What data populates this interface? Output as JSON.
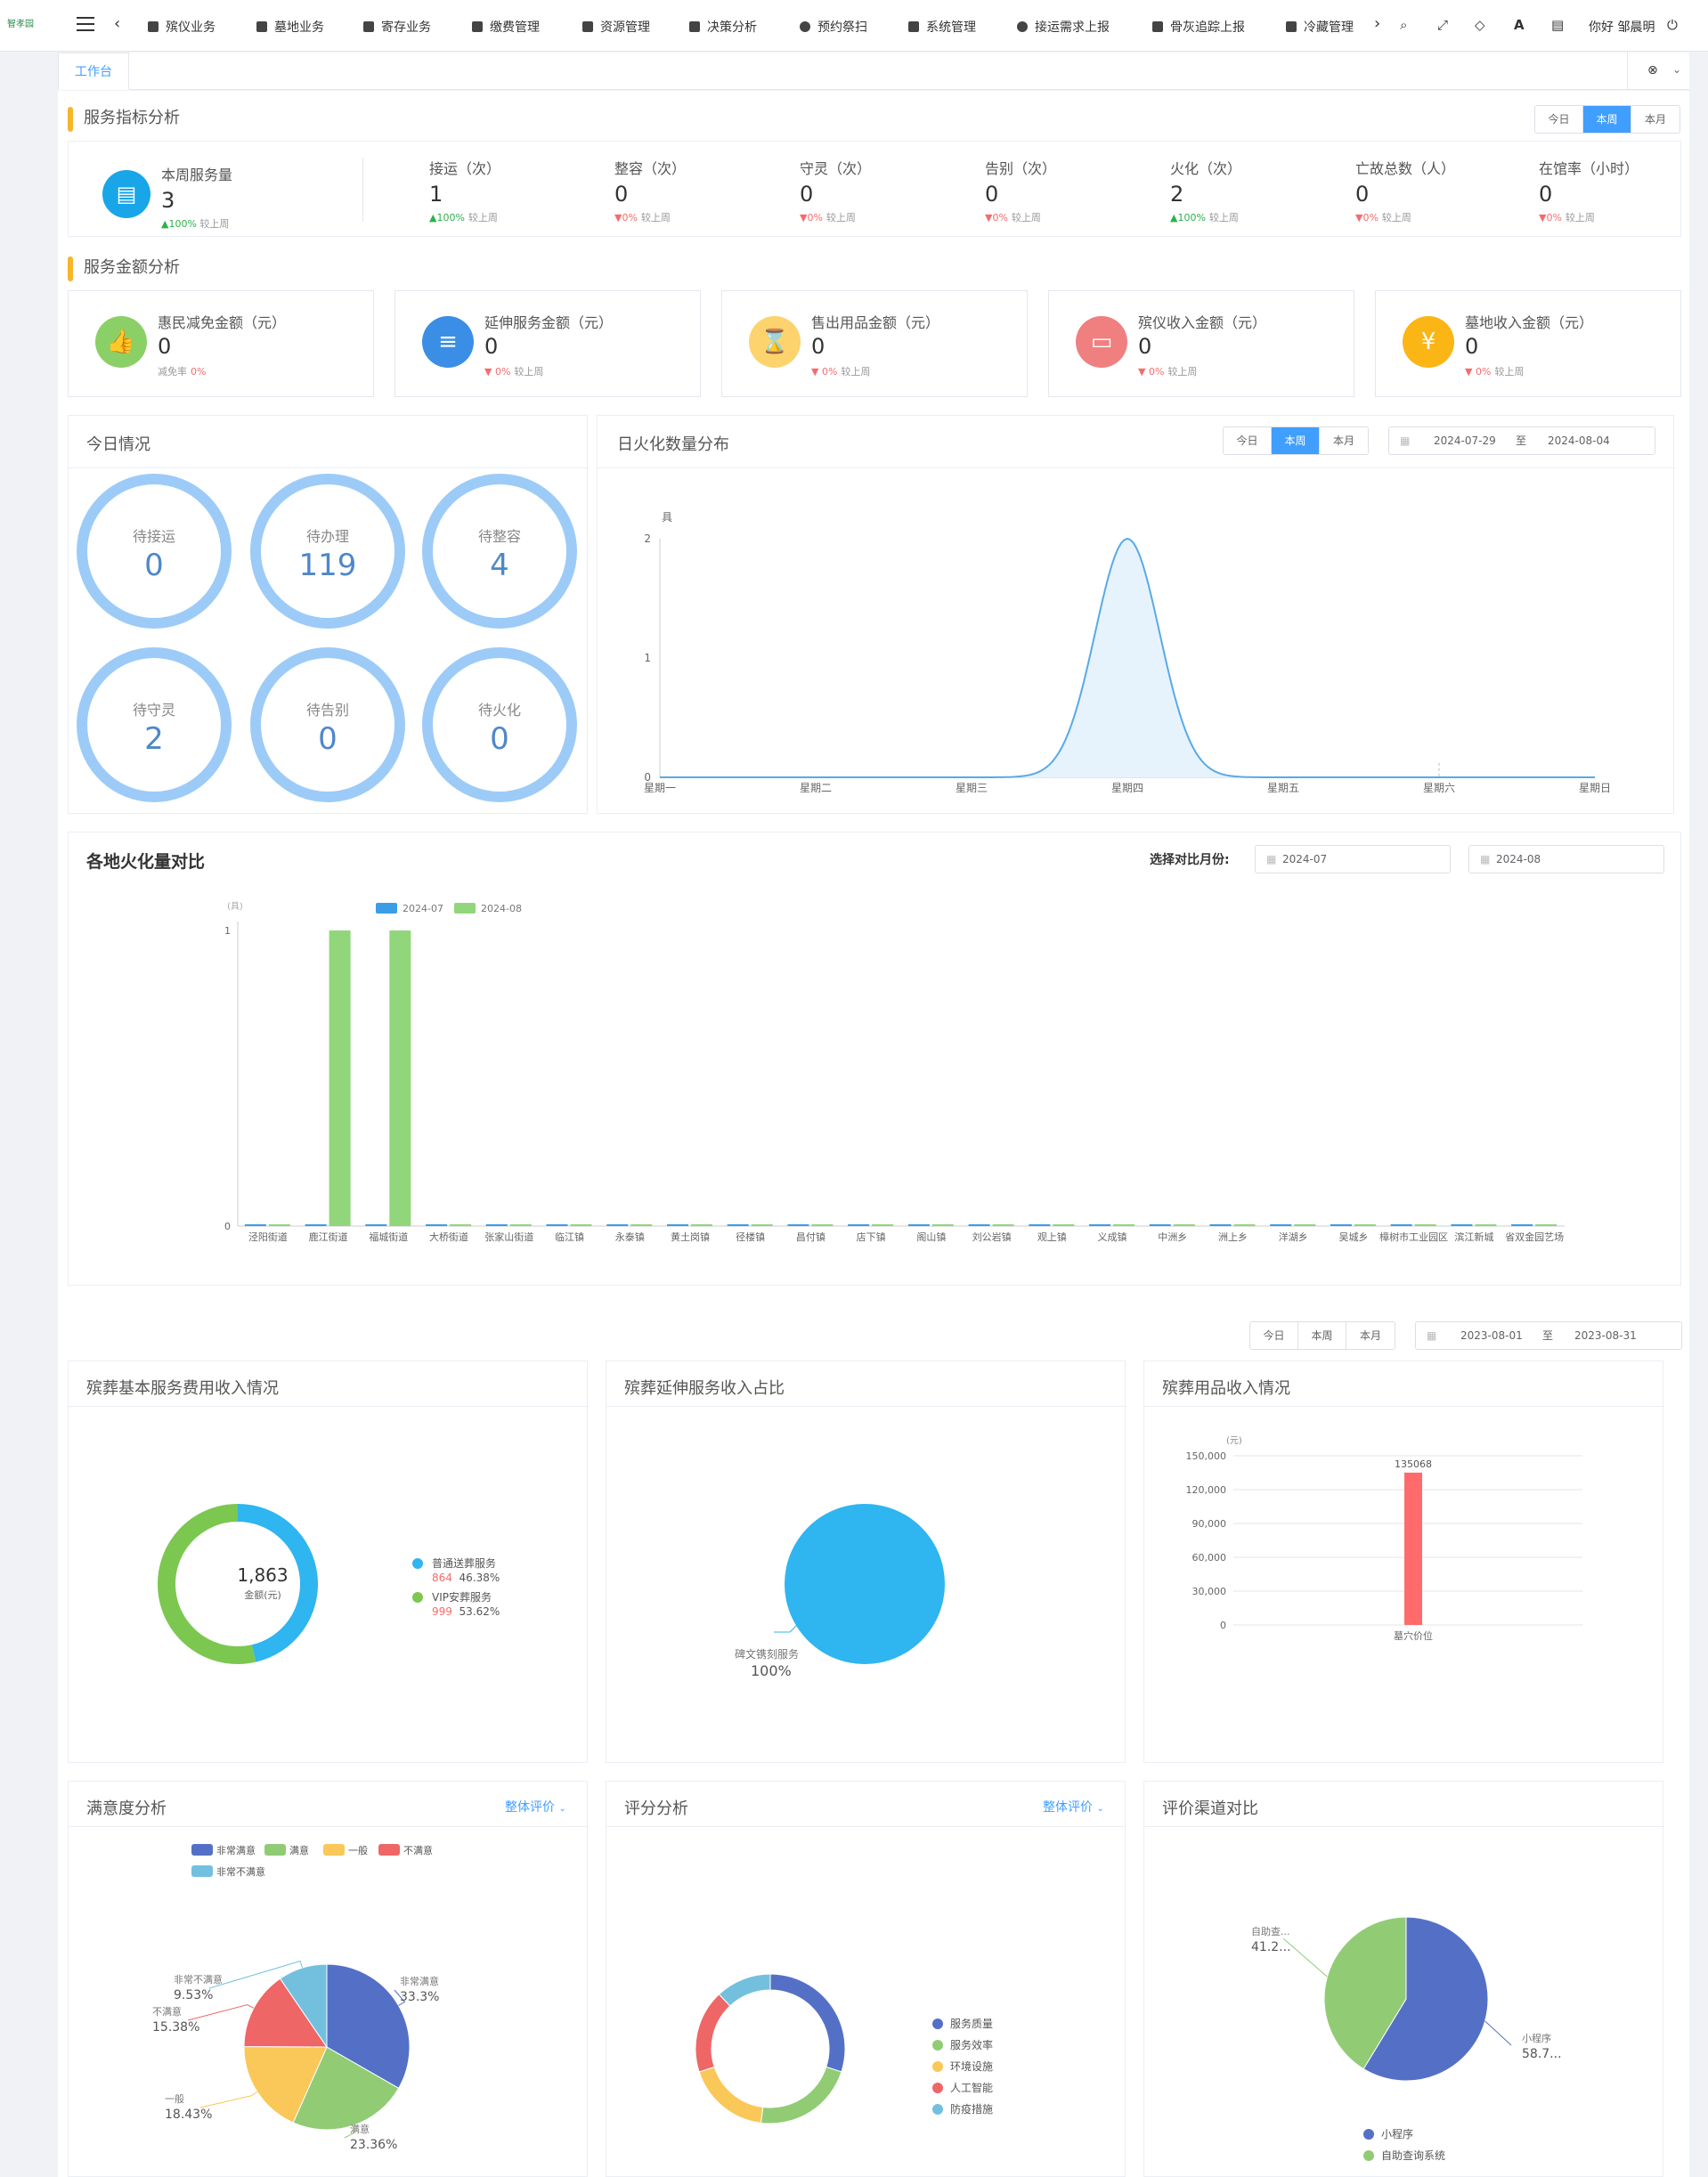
{
  "app": {
    "logo_text": "智孝园",
    "user": "你好 邹晨明"
  },
  "nav": [
    "殡仪业务",
    "墓地业务",
    "寄存业务",
    "缴费管理",
    "资源管理",
    "决策分析",
    "预约祭扫",
    "系统管理",
    "接运需求上报",
    "骨灰追踪上报",
    "冷藏管理"
  ],
  "tab": {
    "label": "工作台"
  },
  "period": [
    "今日",
    "本周",
    "本月"
  ],
  "service_index": {
    "title": "服务指标分析",
    "main": {
      "label": "本周服务量",
      "value": "3",
      "change": "100%",
      "suffix": "较上周"
    },
    "items": [
      {
        "label": "接运（次）",
        "value": "1",
        "change": "100%",
        "dir": "up"
      },
      {
        "label": "整容（次）",
        "value": "0",
        "change": "0%",
        "dir": "dn"
      },
      {
        "label": "守灵（次）",
        "value": "0",
        "change": "0%",
        "dir": "dn"
      },
      {
        "label": "告别（次）",
        "value": "0",
        "change": "0%",
        "dir": "dn"
      },
      {
        "label": "火化（次）",
        "value": "2",
        "change": "100%",
        "dir": "up"
      },
      {
        "label": "亡故总数（人）",
        "value": "0",
        "change": "0%",
        "dir": "dn"
      },
      {
        "label": "在馆率（小时）",
        "value": "0",
        "change": "0%",
        "dir": "dn"
      }
    ],
    "suffix": "较上周"
  },
  "amount": {
    "title": "服务金额分析",
    "items": [
      {
        "label": "惠民减免金额（元）",
        "value": "0",
        "sub": "减免率",
        "change": "0%",
        "color": "#8bd067",
        "icon": "thumb-up-icon",
        "glyph": "👍"
      },
      {
        "label": "延伸服务金额（元）",
        "value": "0",
        "sub": "较上周",
        "change": "0%",
        "color": "#3a8ee6",
        "icon": "database-icon",
        "glyph": "≡"
      },
      {
        "label": "售出用品金额（元）",
        "value": "0",
        "sub": "较上周",
        "change": "0%",
        "color": "#fcd36c",
        "icon": "hourglass-icon",
        "glyph": "⌛"
      },
      {
        "label": "殡仪收入金额（元）",
        "value": "0",
        "sub": "较上周",
        "change": "0%",
        "color": "#f07f7f",
        "icon": "inbox-icon",
        "glyph": "▭"
      },
      {
        "label": "墓地收入金额（元）",
        "value": "0",
        "sub": "较上周",
        "change": "0%",
        "color": "#fbb515",
        "icon": "yen-icon",
        "glyph": "¥"
      }
    ]
  },
  "today": {
    "title": "今日情况",
    "items": [
      {
        "label": "待接运",
        "value": "0"
      },
      {
        "label": "待办理",
        "value": "119"
      },
      {
        "label": "待整容",
        "value": "4"
      },
      {
        "label": "待守灵",
        "value": "2"
      },
      {
        "label": "待告别",
        "value": "0"
      },
      {
        "label": "待火化",
        "value": "0"
      }
    ]
  },
  "cremation_daily": {
    "title": "日火化数量分布",
    "date_from": "2024-07-29",
    "date_to": "2024-08-04",
    "to": "至",
    "chart_data": {
      "type": "area",
      "unit": "具",
      "categories": [
        "星期一",
        "星期二",
        "星期三",
        "星期四",
        "星期五",
        "星期六",
        "星期日"
      ],
      "values": [
        0,
        0,
        0,
        2,
        0,
        0,
        0
      ],
      "ylim": [
        0,
        2
      ],
      "yticks": [
        0,
        1,
        2
      ]
    }
  },
  "region": {
    "title": "各地火化量对比",
    "select_label": "选择对比月份:",
    "month1": "2024-07",
    "month2": "2024-08",
    "chart_data": {
      "type": "bar",
      "unit": "(具)",
      "categories": [
        "泾阳街道",
        "鹿江街道",
        "福城街道",
        "大桥街道",
        "张家山街道",
        "临江镇",
        "永泰镇",
        "黄土岗镇",
        "径楼镇",
        "昌付镇",
        "店下镇",
        "阁山镇",
        "刘公岩镇",
        "观上镇",
        "义成镇",
        "中洲乡",
        "洲上乡",
        "洋湖乡",
        "吴城乡",
        "樟树市工业园区",
        "滨江新城",
        "省双金园艺场"
      ],
      "series": [
        {
          "name": "2024-07",
          "color": "#3a9de6",
          "values": [
            0,
            0,
            0,
            0,
            0,
            0,
            0,
            0,
            0,
            0,
            0,
            0,
            0,
            0,
            0,
            0,
            0,
            0,
            0,
            0,
            0,
            0
          ]
        },
        {
          "name": "2024-08",
          "color": "#91d67a",
          "values": [
            0,
            1,
            1,
            0,
            0,
            0,
            0,
            0,
            0,
            0,
            0,
            0,
            0,
            0,
            0,
            0,
            0,
            0,
            0,
            0,
            0,
            0
          ]
        }
      ],
      "ylim": [
        0,
        1
      ],
      "yticks": [
        0,
        1
      ]
    }
  },
  "bottom_dates": {
    "from": "2023-08-01",
    "to": "2023-08-31",
    "sep": "至"
  },
  "basic_income": {
    "title": "殡葬基本服务费用收入情况",
    "center_value": "1,863",
    "center_label": "金额(元)",
    "chart_data": {
      "type": "pie",
      "slices": [
        {
          "name": "普通送葬服务",
          "value": 864,
          "pct": "46.38%",
          "color": "#2fb5ef"
        },
        {
          "name": "VIP安葬服务",
          "value": 999,
          "pct": "53.62%",
          "color": "#7cc750"
        }
      ]
    }
  },
  "extend_income": {
    "title": "殡葬延伸服务收入占比",
    "chart_data": {
      "type": "pie",
      "slices": [
        {
          "name": "碑文镌刻服务",
          "pct": "100%",
          "color": "#2fb5ef"
        }
      ]
    }
  },
  "goods_income": {
    "title": "殡葬用品收入情况",
    "chart_data": {
      "type": "bar",
      "unit": "(元)",
      "categories": [
        "墓穴价位"
      ],
      "values": [
        135068
      ],
      "label": "135068",
      "ylim": [
        0,
        150000
      ],
      "yticks": [
        "0",
        "30,000",
        "60,000",
        "90,000",
        "120,000",
        "150,000"
      ],
      "color": "#ff6b6b"
    }
  },
  "satisfaction": {
    "title": "满意度分析",
    "dropdown": "整体评价",
    "chart_data": {
      "type": "pie",
      "slices": [
        {
          "name": "非常满意",
          "pct": "33.3%",
          "value": 33.3,
          "color": "#5470c6"
        },
        {
          "name": "满意",
          "pct": "23.36%",
          "value": 23.36,
          "color": "#91cc75"
        },
        {
          "name": "一般",
          "pct": "18.43%",
          "value": 18.43,
          "color": "#fac858"
        },
        {
          "name": "不满意",
          "pct": "15.38%",
          "value": 15.38,
          "color": "#ee6666"
        },
        {
          "name": "非常不满意",
          "pct": "9.53%",
          "value": 9.53,
          "color": "#73c0de"
        }
      ]
    }
  },
  "rating": {
    "title": "评分分析",
    "dropdown": "整体评价",
    "chart_data": {
      "type": "pie",
      "slices": [
        {
          "name": "服务质量",
          "value": 30,
          "color": "#5470c6"
        },
        {
          "name": "服务效率",
          "value": 22,
          "color": "#91cc75"
        },
        {
          "name": "环境设施",
          "value": 18,
          "color": "#fac858"
        },
        {
          "name": "人工智能",
          "value": 18,
          "color": "#ee6666"
        },
        {
          "name": "防疫措施",
          "value": 12,
          "color": "#73c0de"
        }
      ]
    }
  },
  "channel": {
    "title": "评价渠道对比",
    "chart_data": {
      "type": "pie",
      "slices": [
        {
          "name": "小程序",
          "pct": "58.7...",
          "value": 58.7,
          "color": "#5470c6"
        },
        {
          "name": "自助查询系统",
          "short": "自助查...",
          "pct": "41.2...",
          "value": 41.3,
          "color": "#91cc75"
        }
      ]
    }
  }
}
